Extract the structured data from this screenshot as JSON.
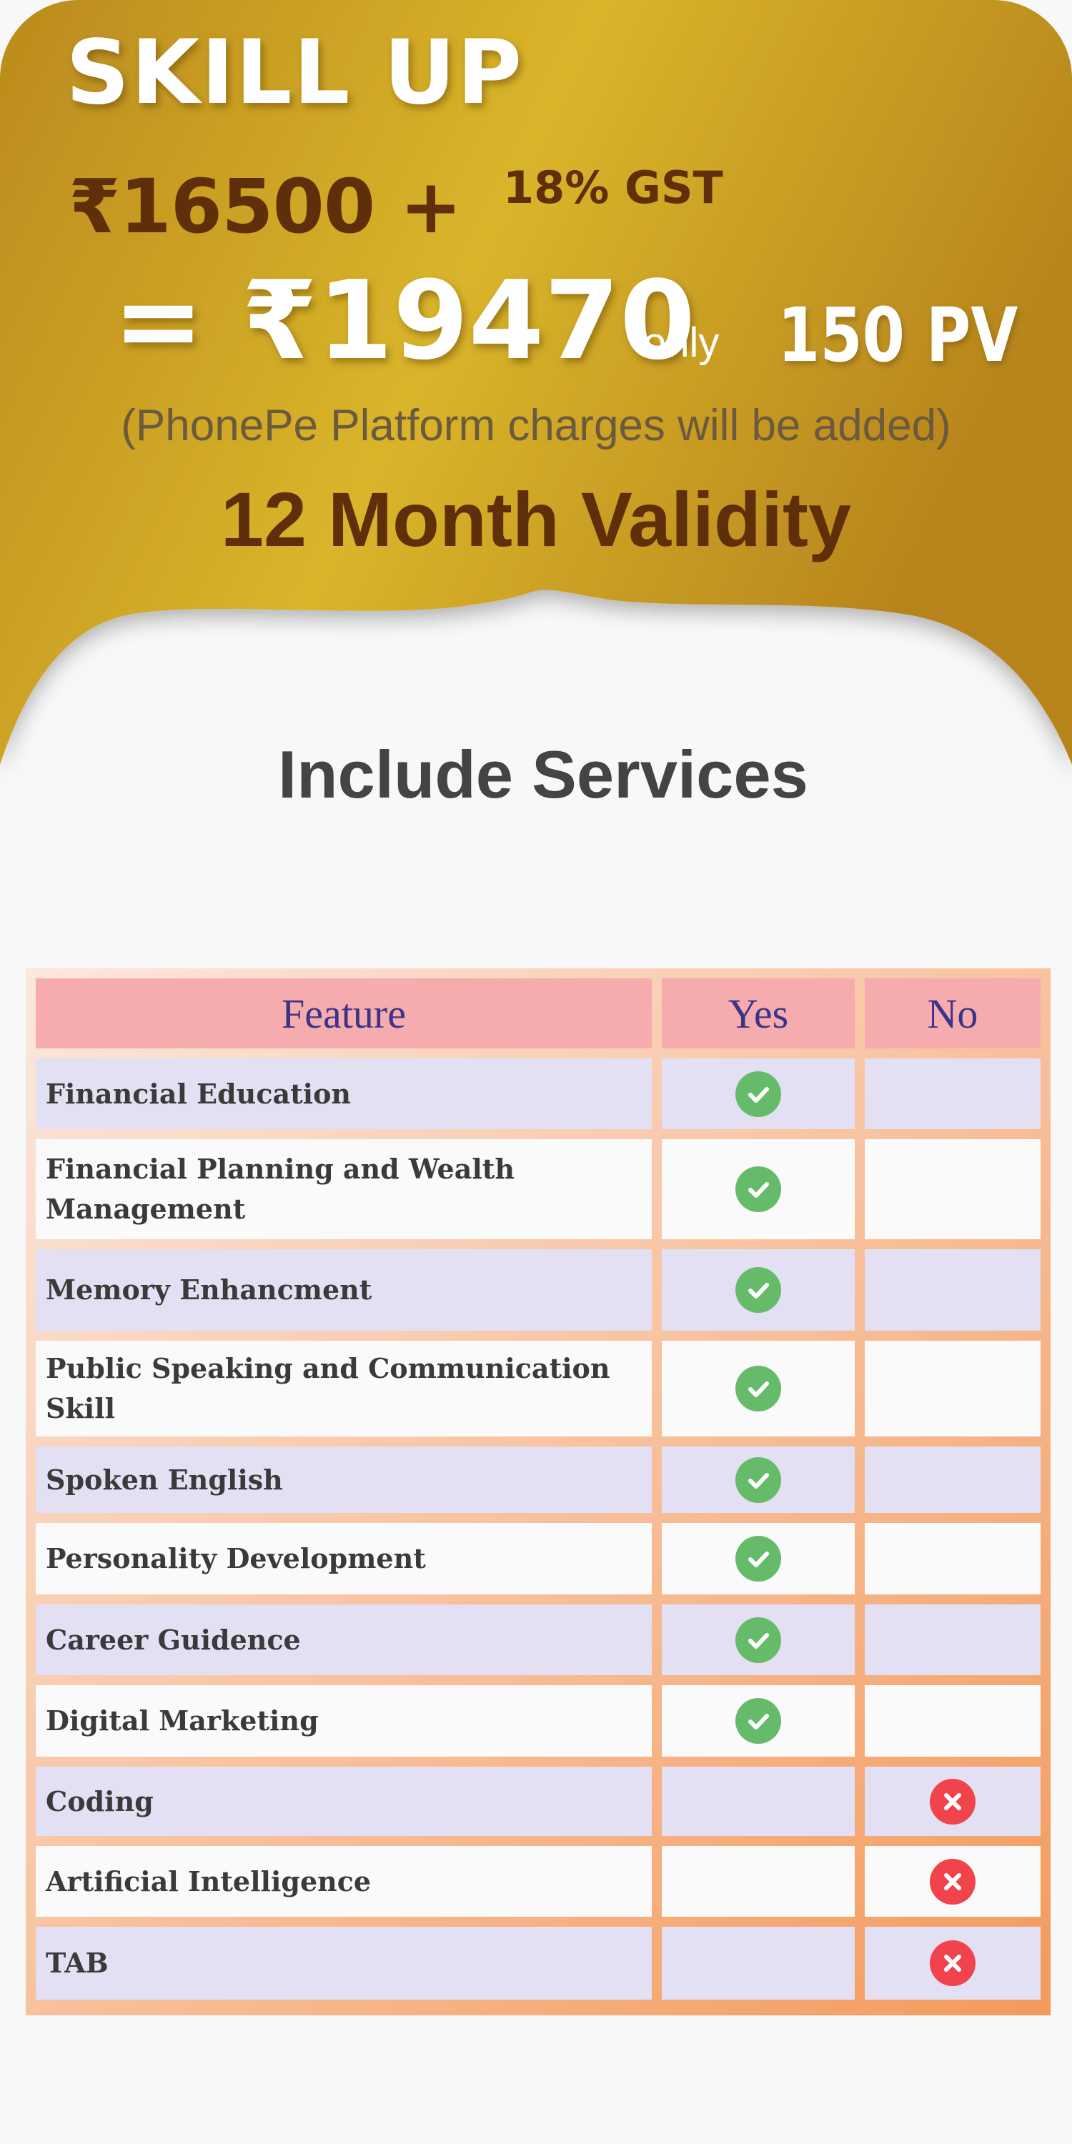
{
  "plan": {
    "title": "SKILL UP",
    "base_price": "₹16500 +",
    "tax": "18% GST",
    "total": "= ₹19470",
    "total_suffix": "only",
    "pv": "150 PV",
    "note": "(PhonePe Platform charges will be added)",
    "validity": "12 Month Validity"
  },
  "services": {
    "heading": "Include Services"
  },
  "table": {
    "headers": [
      "Feature",
      "Yes",
      "No"
    ],
    "rows": [
      {
        "feature": "Financial Education",
        "included": true
      },
      {
        "feature": "Financial Planning and Wealth Management",
        "included": true
      },
      {
        "feature": "Memory Enhancment",
        "included": true
      },
      {
        "feature": "Public Speaking and Communication Skill",
        "included": true
      },
      {
        "feature": "Spoken English",
        "included": true
      },
      {
        "feature": "Personality Development",
        "included": true
      },
      {
        "feature": "Career Guidence",
        "included": true
      },
      {
        "feature": "Digital Marketing",
        "included": true
      },
      {
        "feature": "Coding",
        "included": false
      },
      {
        "feature": "Artificial Intelligence",
        "included": false
      },
      {
        "feature": "TAB",
        "included": false
      }
    ]
  },
  "colors": {
    "gold_light": "#d8b328",
    "gold_dark": "#b8871f",
    "brown_text": "#5e2f08",
    "header_pink": "#f6abae",
    "header_text": "#3b3587",
    "row_lavender": "#e2e0f2",
    "check_green": "#66bb6a",
    "cross_red": "#f0434b"
  }
}
